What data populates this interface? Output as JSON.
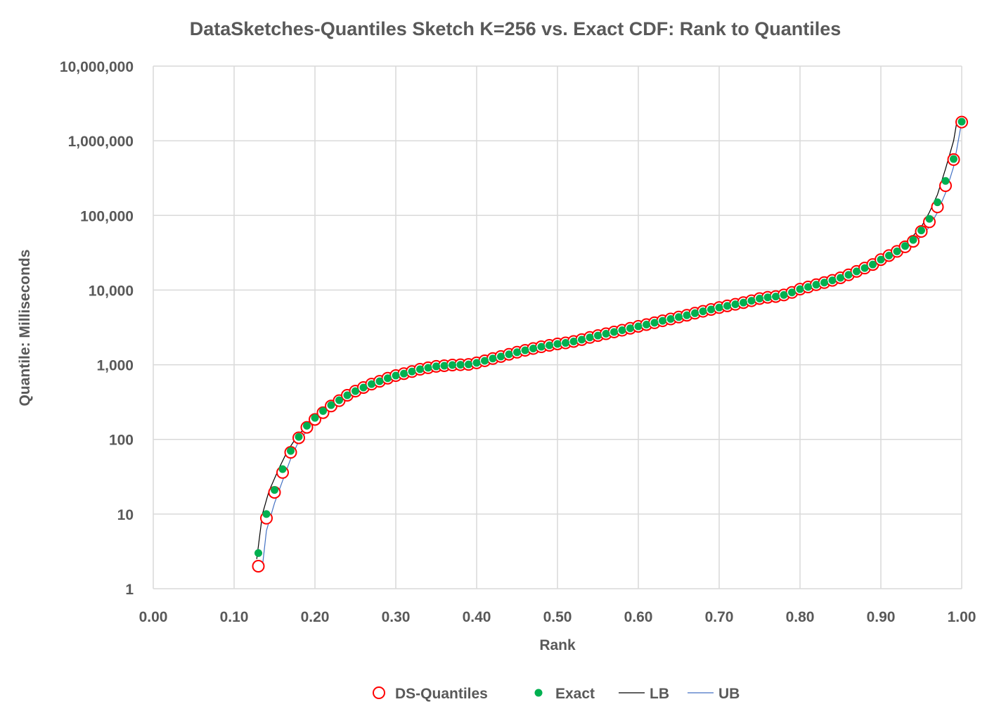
{
  "chart_data": {
    "type": "scatter",
    "title": "DataSketches-Quantiles Sketch K=256 vs. Exact CDF: Rank to Quantiles",
    "xlabel": "Rank",
    "ylabel": "Quantile: Milliseconds",
    "xlim": [
      0,
      1
    ],
    "ylim": [
      1,
      10000000
    ],
    "yscale": "log",
    "grid": true,
    "legend_position": "bottom",
    "x_ticks": [
      "0.00",
      "0.10",
      "0.20",
      "0.30",
      "0.40",
      "0.50",
      "0.60",
      "0.70",
      "0.80",
      "0.90",
      "1.00"
    ],
    "y_ticks": [
      "1",
      "10",
      "100",
      "1,000",
      "10,000",
      "100,000",
      "1,000,000",
      "10,000,000"
    ],
    "colors": {
      "ds": "#ff0000",
      "exact": "#00b050",
      "lb": "#000000",
      "ub": "#4472c4",
      "grid": "#d9d9d9",
      "text": "#595959"
    },
    "ranks": [
      0.13,
      0.14,
      0.15,
      0.16,
      0.17,
      0.18,
      0.19,
      0.2,
      0.21,
      0.22,
      0.23,
      0.24,
      0.25,
      0.26,
      0.27,
      0.28,
      0.29,
      0.3,
      0.31,
      0.32,
      0.33,
      0.34,
      0.35,
      0.36,
      0.37,
      0.38,
      0.39,
      0.4,
      0.41,
      0.42,
      0.43,
      0.44,
      0.45,
      0.46,
      0.47,
      0.48,
      0.49,
      0.5,
      0.51,
      0.52,
      0.53,
      0.54,
      0.55,
      0.56,
      0.57,
      0.58,
      0.59,
      0.6,
      0.61,
      0.62,
      0.63,
      0.64,
      0.65,
      0.66,
      0.67,
      0.68,
      0.69,
      0.7,
      0.71,
      0.72,
      0.73,
      0.74,
      0.75,
      0.76,
      0.77,
      0.78,
      0.79,
      0.8,
      0.81,
      0.82,
      0.83,
      0.84,
      0.85,
      0.86,
      0.87,
      0.88,
      0.89,
      0.9,
      0.91,
      0.92,
      0.93,
      0.94,
      0.95,
      0.96,
      0.97,
      0.98,
      0.99,
      1.0
    ],
    "series": [
      {
        "name": "DS-Quantiles",
        "marker": "open-circle",
        "values": [
          2,
          8.8,
          19.5,
          36,
          67,
          105,
          145,
          185,
          228,
          280,
          330,
          390,
          443,
          495,
          550,
          600,
          660,
          715,
          760,
          810,
          870,
          910,
          950,
          970,
          990,
          1000,
          1010,
          1060,
          1130,
          1210,
          1290,
          1380,
          1470,
          1560,
          1650,
          1740,
          1820,
          1900,
          1960,
          2050,
          2170,
          2320,
          2460,
          2600,
          2750,
          2900,
          3080,
          3270,
          3450,
          3650,
          3880,
          4100,
          4350,
          4600,
          4900,
          5200,
          5500,
          5830,
          6150,
          6450,
          6800,
          7200,
          7700,
          8000,
          8200,
          8600,
          9300,
          10300,
          11000,
          11800,
          12600,
          13500,
          14600,
          16000,
          17800,
          19700,
          22000,
          25600,
          29000,
          33000,
          38000,
          45000,
          61000,
          82000,
          130000,
          250000,
          560000,
          1780000
        ]
      },
      {
        "name": "Exact",
        "marker": "filled-dot",
        "values": [
          3,
          10,
          21,
          40,
          70,
          108,
          152,
          194,
          240,
          288,
          335,
          390,
          443,
          495,
          550,
          600,
          660,
          715,
          760,
          810,
          870,
          910,
          950,
          970,
          990,
          1000,
          1010,
          1060,
          1130,
          1210,
          1290,
          1380,
          1470,
          1560,
          1650,
          1740,
          1820,
          1900,
          1960,
          2050,
          2170,
          2320,
          2460,
          2600,
          2750,
          2900,
          3080,
          3270,
          3450,
          3650,
          3880,
          4100,
          4350,
          4600,
          4900,
          5200,
          5500,
          5830,
          6150,
          6450,
          6800,
          7200,
          7700,
          8000,
          8200,
          8600,
          9300,
          10300,
          11000,
          11800,
          12600,
          13500,
          14600,
          16000,
          17800,
          19700,
          22000,
          25600,
          29000,
          33000,
          39000,
          47000,
          63000,
          90000,
          150000,
          290000,
          570000,
          1800000
        ]
      },
      {
        "name": "LB",
        "marker": "line",
        "x": [
          0.128,
          0.135,
          0.143,
          0.155,
          0.166,
          0.178,
          0.2,
          0.25,
          0.3,
          0.4,
          0.5,
          0.6,
          0.7,
          0.8,
          0.9,
          0.93,
          0.95,
          0.96,
          0.97,
          0.98,
          0.99,
          0.994
        ],
        "y": [
          2.5,
          10,
          20,
          40,
          70,
          110,
          200,
          450,
          720,
          1070,
          1920,
          3300,
          5900,
          10500,
          26500,
          41000,
          70000,
          110000,
          190000,
          420000,
          1000000,
          1800000
        ]
      },
      {
        "name": "UB",
        "marker": "line",
        "x": [
          0.135,
          0.14,
          0.15,
          0.16,
          0.17,
          0.18,
          0.2,
          0.25,
          0.3,
          0.4,
          0.5,
          0.6,
          0.7,
          0.8,
          0.9,
          0.93,
          0.95,
          0.96,
          0.97,
          0.98,
          0.99,
          1.0
        ],
        "y": [
          2,
          6,
          14,
          28,
          55,
          95,
          175,
          430,
          700,
          1040,
          1870,
          3200,
          5700,
          10000,
          24500,
          36000,
          52000,
          70000,
          110000,
          200000,
          450000,
          1800000
        ]
      }
    ]
  }
}
